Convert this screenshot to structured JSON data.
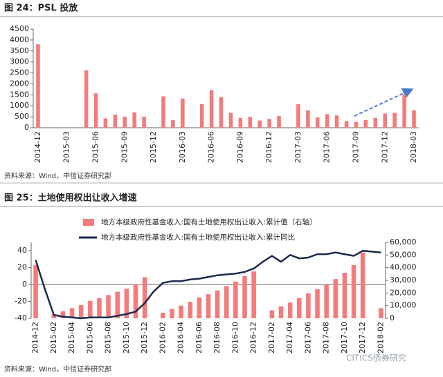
{
  "chart_data": [
    {
      "type": "bar",
      "title": "图 24：PSL 投放",
      "source": "资料来源：Wind，中信证券研究部",
      "categories": [
        "2014-12",
        null,
        null,
        "2015-03",
        null,
        null,
        "2015-06",
        null,
        null,
        "2015-09",
        null,
        null,
        "2015-12",
        null,
        null,
        "2016-03",
        null,
        null,
        "2016-06",
        null,
        null,
        "2016-09",
        null,
        null,
        "2016-12",
        null,
        null,
        "2017-03",
        null,
        null,
        "2017-06",
        null,
        null,
        "2017-09",
        null,
        null,
        "2017-12",
        null,
        null,
        "2018-03"
      ],
      "values": [
        3800,
        0,
        0,
        0,
        0,
        2620,
        1570,
        430,
        600,
        500,
        700,
        500,
        0,
        1430,
        350,
        1330,
        0,
        1080,
        1720,
        1400,
        680,
        450,
        500,
        330,
        400,
        530,
        0,
        1070,
        800,
        470,
        620,
        560,
        300,
        270,
        350,
        450,
        650,
        680,
        1500,
        800
      ],
      "color": "#f47b7b",
      "ylim": [
        0,
        4500
      ],
      "yticks": [
        0,
        500,
        1000,
        1500,
        2000,
        2500,
        3000,
        3500,
        4000,
        4500
      ],
      "grid": false
    },
    {
      "type": "combo",
      "title": "图 25：土地使用权出让收入增速",
      "source": "资料来源：Wind，中信证券研究部",
      "watermark": "CITICS债券研究",
      "categories": [
        "2014-12",
        null,
        "2015-02",
        null,
        "2015-04",
        null,
        "2015-06",
        null,
        "2015-08",
        null,
        "2015-10",
        null,
        "2015-12",
        null,
        "2016-02",
        null,
        "2016-04",
        null,
        "2016-06",
        null,
        "2016-08",
        null,
        "2016-10",
        null,
        "2016-12",
        null,
        "2017-02",
        null,
        "2017-04",
        null,
        "2017-06",
        null,
        "2017-08",
        null,
        "2017-10",
        null,
        "2017-12",
        null,
        "2018-02"
      ],
      "series": [
        {
          "name": "地方本级政府性基金收入:国有土地使用权出让收入:累计值（右轴）",
          "type": "bar",
          "axis": "y2",
          "color": "#f47b7b",
          "values": [
            42000,
            null,
            3200,
            5600,
            8000,
            10500,
            13800,
            16000,
            18400,
            21000,
            23500,
            27000,
            32500,
            null,
            4400,
            7400,
            10000,
            13000,
            16500,
            19000,
            22000,
            25500,
            29000,
            33500,
            37000,
            null,
            6300,
            9500,
            12500,
            16000,
            19700,
            23000,
            26500,
            31000,
            36000,
            42000,
            52000,
            null,
            8000
          ]
        },
        {
          "name": "地方本级政府性基金收入:国有土地使用权出让收入:累计同比",
          "type": "line",
          "color": "#1b2a4a",
          "values": [
            29,
            -5,
            -36,
            -38,
            -39,
            -40,
            -39,
            -39,
            -39,
            -37,
            -35,
            -32,
            -22,
            -8,
            2,
            4,
            4,
            6,
            7,
            9,
            11,
            12,
            13,
            15,
            19,
            27,
            34,
            27,
            35,
            31,
            32,
            36,
            36,
            38,
            36,
            34,
            40,
            39,
            38
          ]
        }
      ],
      "ylim": [
        -40,
        50
      ],
      "yticks": [
        -40,
        -20,
        0,
        20,
        40
      ],
      "y2lim": [
        0,
        60000
      ],
      "y2ticks": [
        0,
        {
          "value": 10000,
          "label": "10,000"
        },
        {
          "value": 20000,
          "label": "20,000"
        },
        {
          "value": 30000,
          "label": "30,000"
        },
        {
          "value": 40000,
          "label": "40,000"
        },
        {
          "value": 50000,
          "label": "50,000"
        },
        {
          "value": 60000,
          "label": "60,000"
        }
      ],
      "grid": false
    }
  ]
}
